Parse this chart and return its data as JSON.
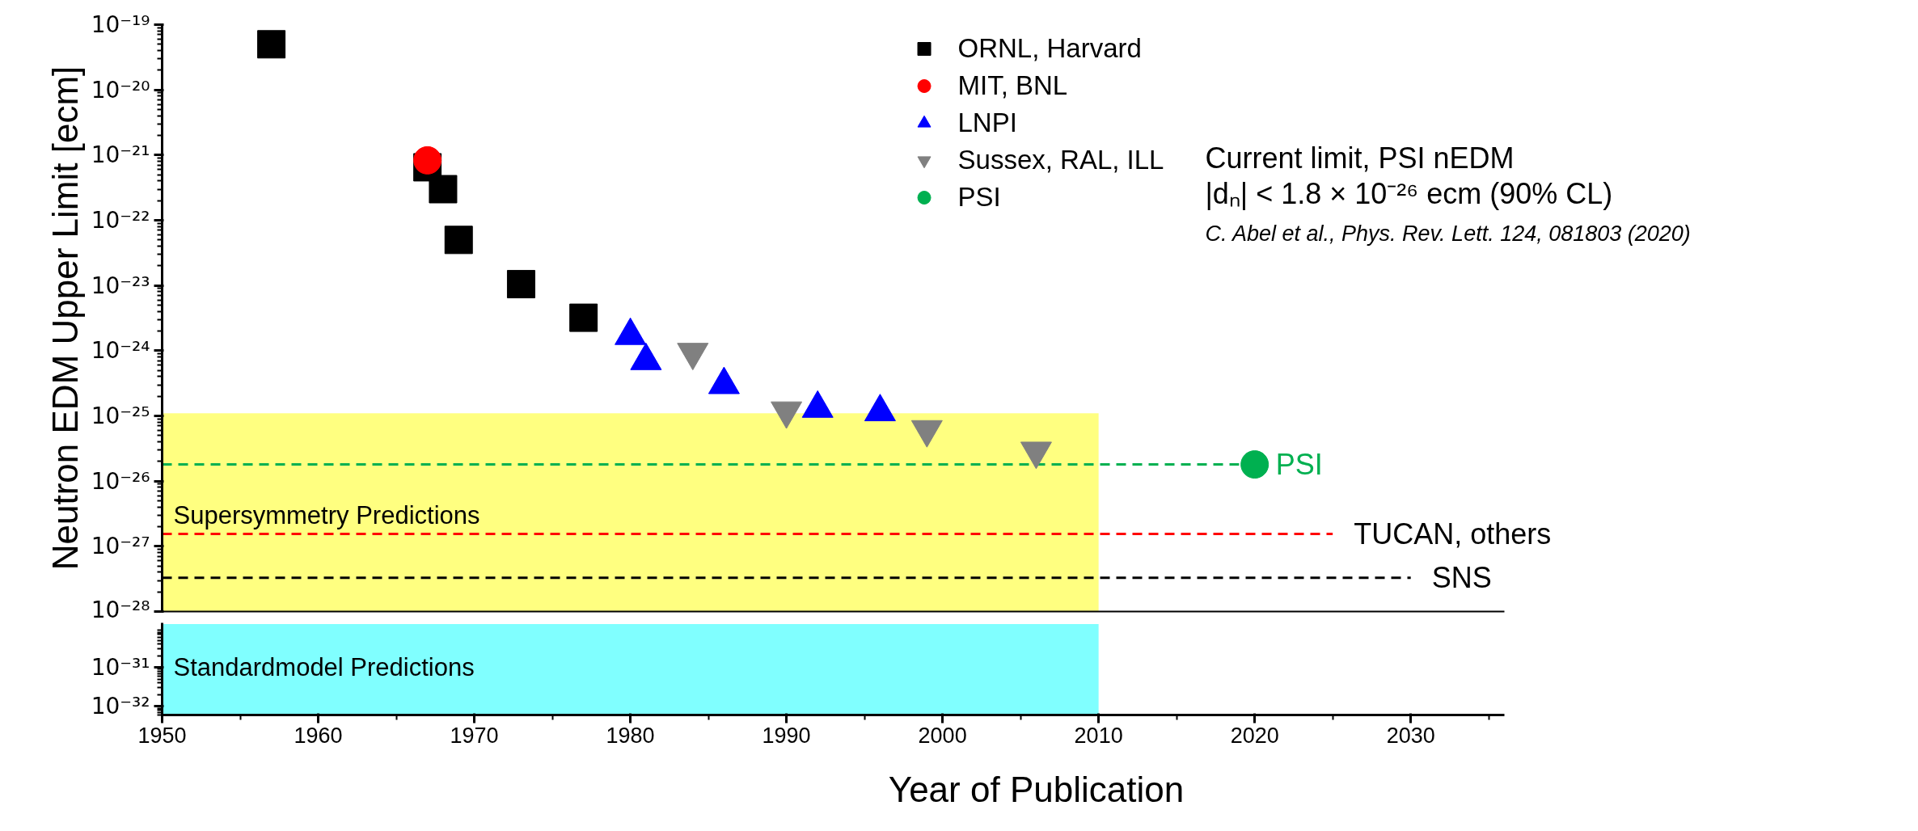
{
  "chart_data": [
    {
      "type": "scatter",
      "ylabel": "Neutron EDM Upper Limit [ecm]",
      "xlim": [
        1950,
        2036
      ],
      "xticks": [
        1950,
        1960,
        1970,
        1980,
        1990,
        2000,
        2010,
        2020,
        2030
      ],
      "ylim": [
        1e-28,
        1e-19
      ],
      "yticks": [
        {
          "value": 1e-28,
          "label": "10⁻²⁸"
        },
        {
          "value": 1e-27,
          "label": "10⁻²⁷"
        },
        {
          "value": 1e-26,
          "label": "10⁻²⁶"
        },
        {
          "value": 1e-25,
          "label": "10⁻²⁵"
        },
        {
          "value": 1e-24,
          "label": "10⁻²⁴"
        },
        {
          "value": 1e-23,
          "label": "10⁻²³"
        },
        {
          "value": 1e-22,
          "label": "10⁻²²"
        },
        {
          "value": 1e-21,
          "label": "10⁻²¹"
        },
        {
          "value": 1e-20,
          "label": "10⁻²⁰"
        },
        {
          "value": 1e-19,
          "label": "10⁻¹⁹"
        }
      ],
      "log": "y",
      "legend": "top",
      "tick_labels": "y",
      "annotations": [
        "Current limit, PSI nEDM",
        "|dₙ| < 1.8 × 10⁻²⁶ ecm (90% CL)",
        "C. Abel et al., Phys. Rev. Lett.  124, 081803 (2020)",
        {
          "text": "PSI",
          "x": 2020,
          "y": 1.8e-26
        },
        {
          "text": "TUCAN, others",
          "x": 2025,
          "y": 1.55e-27
        },
        {
          "text": "SNS",
          "x": 2030,
          "y": 3.3e-28
        },
        {
          "text": "Supersymmetry Predictions",
          "x": 1950,
          "y": 3e-27
        }
      ],
      "series": [
        {
          "type": "area",
          "color": "#ffff80",
          "x": [
            1950,
            2010
          ],
          "values": [
            1.1e-25,
            1.1e-25
          ]
        },
        {
          "type": "line",
          "color": "#00b050",
          "line_style": "dashed",
          "x": [
            1950,
            2019
          ],
          "values": [
            1.8e-26,
            1.8e-26
          ]
        },
        {
          "type": "line",
          "color": "#ff0000",
          "line_style": "dashed",
          "x": [
            1950,
            2025
          ],
          "values": [
            1.55e-27,
            1.55e-27
          ]
        },
        {
          "type": "line",
          "color": "#000000",
          "line_style": "dashed",
          "x": [
            1950,
            2030
          ],
          "values": [
            3.3e-28,
            3.3e-28
          ]
        },
        {
          "name": "ORNL, Harvard",
          "color": "#000000",
          "marker": "square",
          "x": [
            1957,
            1967,
            1968,
            1969,
            1973,
            1977
          ],
          "values": [
            5e-20,
            6.5e-22,
            3e-22,
            5e-23,
            1.05e-23,
            3.2e-24
          ]
        },
        {
          "name": "MIT, BNL",
          "color": "#ff0000",
          "marker": "circle",
          "x": [
            1967
          ],
          "values": [
            8.3e-22
          ]
        },
        {
          "name": "LNPI",
          "color": "#0000ff",
          "marker": "triangle",
          "x": [
            1980,
            1981,
            1986,
            1992,
            1996
          ],
          "values": [
            1.7e-24,
            7e-25,
            3e-25,
            1.3e-25,
            1.15e-25
          ]
        },
        {
          "name": "Sussex, RAL, ILL",
          "color": "#808080",
          "marker": "triangle_down",
          "x": [
            1984,
            1990,
            1999,
            2006
          ],
          "values": [
            9.5e-25,
            1.2e-25,
            6.2e-26,
            2.9e-26
          ]
        },
        {
          "name": "PSI",
          "color": "#00b050",
          "marker": "circle",
          "x": [
            2020
          ],
          "values": [
            1.8e-26
          ]
        }
      ]
    },
    {
      "type": "area",
      "xlabel": "Year of Publication",
      "xlim": [
        1950,
        2036
      ],
      "xticks": [
        1950,
        1960,
        1970,
        1980,
        1990,
        2000,
        2010,
        2020,
        2030
      ],
      "ylim": [
        6e-33,
        1.4e-30
      ],
      "yticks": [
        {
          "value": 1e-32,
          "label": "10⁻³²"
        },
        {
          "value": 1e-31,
          "label": "10⁻³¹"
        }
      ],
      "log": "y",
      "annotations": [
        {
          "text": "Standardmodel Predictions",
          "x": 1950,
          "y": 1e-31
        }
      ],
      "series": [
        {
          "color": "#80ffff",
          "x": [
            1950,
            2010
          ],
          "values": [
            1.3e-30,
            1.3e-30
          ]
        }
      ]
    }
  ]
}
